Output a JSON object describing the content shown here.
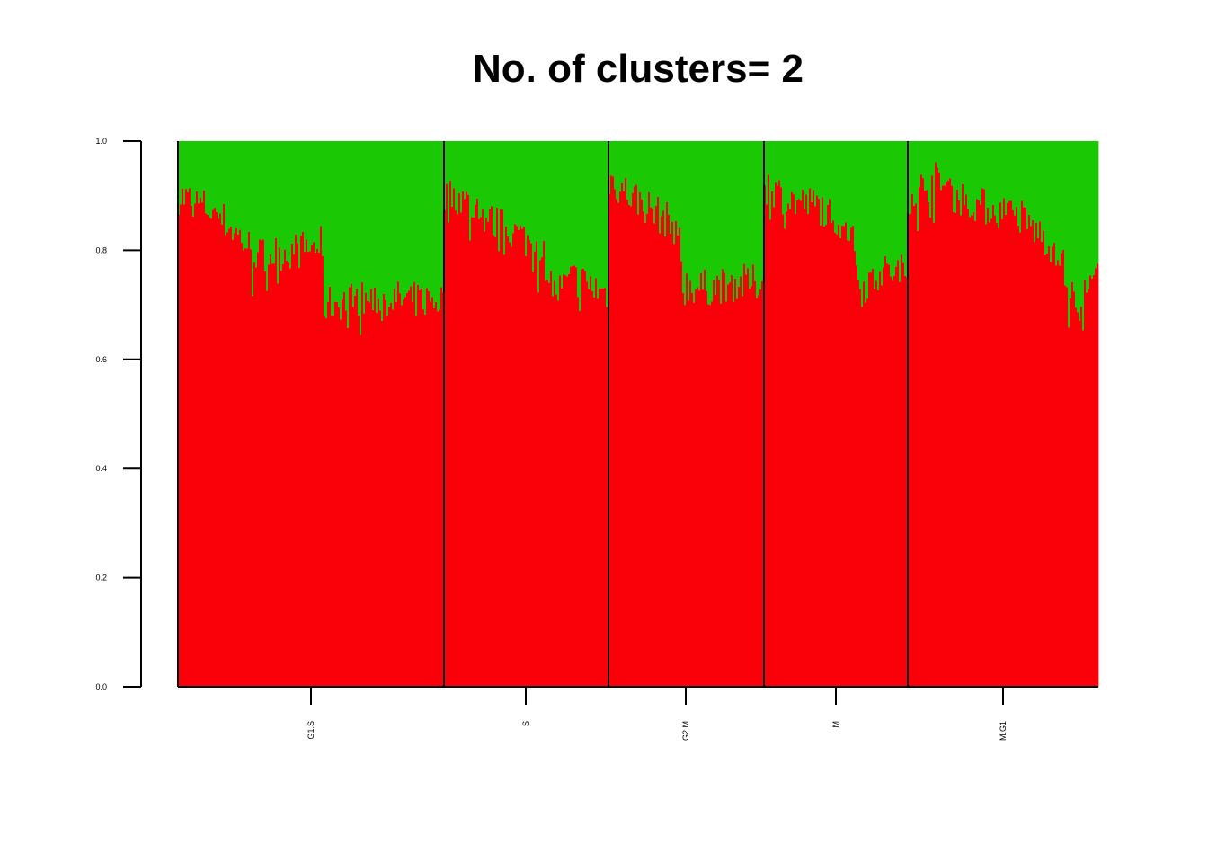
{
  "chart_data": {
    "type": "bar",
    "title": "No. of clusters= 2",
    "xlabel": "",
    "ylabel": "",
    "ylim": [
      0,
      1
    ],
    "y_ticks": [
      "0.0",
      "0.2",
      "0.4",
      "0.6",
      "0.8",
      "1.0"
    ],
    "groups": [
      "G1.S",
      "S",
      "G2.M",
      "M",
      "M.G1"
    ],
    "series": [
      {
        "color": "#fa0008"
      },
      {
        "color": "#1ac904"
      }
    ],
    "group_cluster1_profiles": [
      [
        [
          0.0,
          0.9
        ],
        [
          0.1,
          0.88
        ],
        [
          0.16,
          0.86
        ],
        [
          0.3,
          0.79
        ],
        [
          0.45,
          0.8
        ],
        [
          0.54,
          0.81
        ],
        [
          0.55,
          0.7
        ],
        [
          0.65,
          0.71
        ],
        [
          0.8,
          0.71
        ],
        [
          1.0,
          0.71
        ]
      ],
      [
        [
          0.0,
          0.9
        ],
        [
          0.08,
          0.9
        ],
        [
          0.3,
          0.85
        ],
        [
          0.45,
          0.83
        ],
        [
          0.6,
          0.8
        ],
        [
          0.68,
          0.72
        ],
        [
          0.8,
          0.75
        ],
        [
          1.0,
          0.72
        ]
      ],
      [
        [
          0.0,
          0.93
        ],
        [
          0.15,
          0.9
        ],
        [
          0.35,
          0.86
        ],
        [
          0.45,
          0.84
        ],
        [
          0.48,
          0.74
        ],
        [
          0.6,
          0.73
        ],
        [
          0.8,
          0.74
        ],
        [
          1.0,
          0.74
        ]
      ],
      [
        [
          0.0,
          0.92
        ],
        [
          0.2,
          0.89
        ],
        [
          0.4,
          0.88
        ],
        [
          0.6,
          0.84
        ],
        [
          0.68,
          0.73
        ],
        [
          0.8,
          0.76
        ],
        [
          1.0,
          0.76
        ]
      ],
      [
        [
          0.0,
          0.9
        ],
        [
          0.15,
          0.93
        ],
        [
          0.25,
          0.9
        ],
        [
          0.4,
          0.88
        ],
        [
          0.6,
          0.86
        ],
        [
          0.72,
          0.82
        ],
        [
          0.8,
          0.8
        ],
        [
          0.85,
          0.72
        ],
        [
          0.9,
          0.7
        ],
        [
          1.0,
          0.75
        ]
      ]
    ]
  }
}
